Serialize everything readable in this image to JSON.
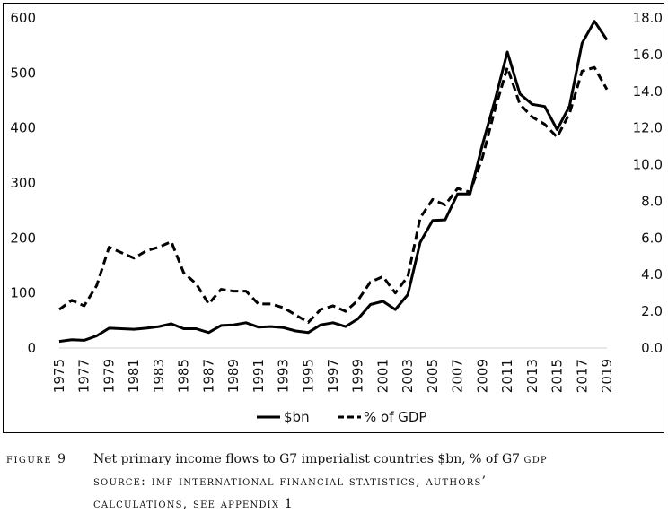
{
  "chart_data": {
    "type": "line",
    "title": "",
    "x": [
      1975,
      1976,
      1977,
      1978,
      1979,
      1980,
      1981,
      1982,
      1983,
      1984,
      1985,
      1986,
      1987,
      1988,
      1989,
      1990,
      1991,
      1992,
      1993,
      1994,
      1995,
      1996,
      1997,
      1998,
      1999,
      2000,
      2001,
      2002,
      2003,
      2004,
      2005,
      2006,
      2007,
      2008,
      2009,
      2010,
      2011,
      2012,
      2013,
      2014,
      2015,
      2016,
      2017,
      2018,
      2019
    ],
    "x_tick_labels": [
      "1975",
      "1977",
      "1979",
      "1981",
      "1983",
      "1985",
      "1987",
      "1989",
      "1991",
      "1993",
      "1995",
      "1997",
      "1999",
      "2001",
      "2003",
      "2005",
      "2007",
      "2009",
      "2011",
      "2013",
      "2015",
      "2017",
      "2019"
    ],
    "y_left": {
      "ylim": [
        0,
        600
      ],
      "ticks": [
        "0",
        "100",
        "200",
        "300",
        "400",
        "500",
        "600"
      ]
    },
    "y_right": {
      "ylim": [
        0,
        18
      ],
      "ticks": [
        "0.0",
        "2.0",
        "4.0",
        "6.0",
        "8.0",
        "10.0",
        "12.0",
        "14.0",
        "16.0",
        "18.0"
      ]
    },
    "grid": false,
    "legend_position": "bottom",
    "series": [
      {
        "name": "$bn",
        "axis": "left",
        "style": "solid",
        "values": [
          12,
          15,
          14,
          22,
          36,
          35,
          34,
          36,
          39,
          44,
          35,
          35,
          28,
          41,
          42,
          46,
          38,
          39,
          37,
          31,
          28,
          42,
          46,
          39,
          53,
          79,
          85,
          70,
          97,
          192,
          232,
          233,
          280,
          280,
          370,
          450,
          538,
          462,
          443,
          439,
          397,
          440,
          554,
          594,
          560
        ]
      },
      {
        "name": "% of GDP",
        "axis": "right",
        "style": "dashed",
        "values": [
          2.1,
          2.6,
          2.3,
          3.4,
          5.5,
          5.2,
          4.9,
          5.3,
          5.5,
          5.8,
          4.1,
          3.5,
          2.4,
          3.2,
          3.1,
          3.1,
          2.4,
          2.4,
          2.2,
          1.8,
          1.4,
          2.1,
          2.3,
          2.0,
          2.6,
          3.6,
          3.9,
          3.0,
          3.9,
          7.1,
          8.1,
          7.8,
          8.7,
          8.5,
          10.4,
          13.0,
          15.3,
          13.3,
          12.6,
          12.2,
          11.5,
          12.8,
          15.1,
          15.3,
          14.1
        ]
      }
    ]
  },
  "caption": {
    "label": "figure 9",
    "line1": "Net primary income flows to G7 imperialist countries $bn, % of G7 ",
    "line1_sc": "gdp",
    "line2": "source: imf international financial statistics, authors’",
    "line3": "calculations, see appendix 1"
  }
}
